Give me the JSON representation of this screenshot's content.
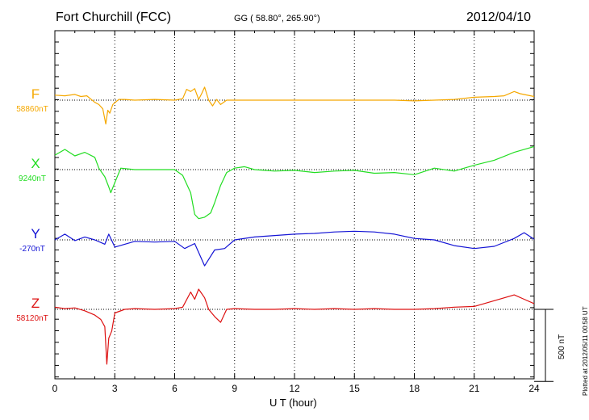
{
  "header": {
    "station": "Fort Churchill (FCC)",
    "coordinates": "GG ( 58.80°, 265.90°)",
    "date": "2012/04/10"
  },
  "footer": {
    "plotted_note": "Plotted at 2012/05/11 00:58 UT"
  },
  "scale": {
    "label": "500 nT",
    "value_nT": 500
  },
  "chart_data": {
    "type": "line",
    "title": "Fort Churchill (FCC)",
    "xlabel": "U T (hour)",
    "xlim": [
      0,
      24
    ],
    "xticks": [
      0,
      3,
      6,
      9,
      12,
      15,
      18,
      21,
      24
    ],
    "grid": "vertical dotted lines every 3 hours; dotted baseline per component",
    "series": [
      {
        "name": "F",
        "baseline_label": "58860nT",
        "color": "#f5a800",
        "x": [
          0,
          0.5,
          1.0,
          1.3,
          1.6,
          2.0,
          2.2,
          2.4,
          2.55,
          2.65,
          2.75,
          2.9,
          3.2,
          3.5,
          4.0,
          5.0,
          6.0,
          6.4,
          6.6,
          6.8,
          7.0,
          7.2,
          7.35,
          7.5,
          7.7,
          7.9,
          8.1,
          8.3,
          8.6,
          9.0,
          10,
          11,
          12,
          13,
          14,
          15,
          16,
          17,
          18,
          19,
          20,
          21,
          22,
          22.5,
          23,
          23.3,
          24
        ],
        "values": [
          35,
          30,
          40,
          25,
          30,
          -15,
          -30,
          -60,
          -165,
          -70,
          -90,
          -30,
          5,
          5,
          0,
          5,
          0,
          10,
          75,
          60,
          80,
          5,
          45,
          90,
          0,
          -40,
          5,
          -30,
          0,
          0,
          0,
          0,
          0,
          0,
          0,
          0,
          0,
          0,
          -5,
          0,
          5,
          20,
          25,
          30,
          60,
          45,
          25
        ]
      },
      {
        "name": "X",
        "baseline_label": "9240nT",
        "color": "#22dd22",
        "x": [
          0,
          0.5,
          1.0,
          1.5,
          2.0,
          2.2,
          2.5,
          2.7,
          2.8,
          3.0,
          3.3,
          4.0,
          5.0,
          6.0,
          6.4,
          6.8,
          7.0,
          7.2,
          7.5,
          7.8,
          8.0,
          8.3,
          8.6,
          9.0,
          9.5,
          10,
          11,
          12,
          13,
          14,
          15,
          16,
          17,
          18,
          19,
          20,
          21,
          22,
          23,
          24
        ],
        "values": [
          100,
          140,
          95,
          120,
          85,
          10,
          -50,
          -120,
          -160,
          -90,
          10,
          0,
          0,
          0,
          -40,
          -160,
          -310,
          -340,
          -330,
          -300,
          -230,
          -110,
          -20,
          10,
          20,
          0,
          -10,
          -5,
          -20,
          -10,
          -5,
          -25,
          -20,
          -35,
          10,
          -10,
          30,
          65,
          120,
          160
        ]
      },
      {
        "name": "Y",
        "baseline_label": "-270nT",
        "color": "#1515d5",
        "x": [
          0,
          0.5,
          1.0,
          1.5,
          2.0,
          2.5,
          2.7,
          3.0,
          3.5,
          4.0,
          5.0,
          6.0,
          6.5,
          7.0,
          7.5,
          8.0,
          8.5,
          9.0,
          10,
          11,
          12,
          13,
          14,
          15,
          16,
          17,
          18,
          19,
          20,
          21,
          22,
          23,
          23.5,
          24
        ],
        "values": [
          0,
          40,
          -5,
          20,
          0,
          -30,
          40,
          -50,
          -30,
          -10,
          -15,
          -10,
          -60,
          -25,
          -180,
          -70,
          -60,
          0,
          20,
          30,
          40,
          45,
          55,
          60,
          55,
          40,
          10,
          0,
          -40,
          -60,
          -45,
          10,
          50,
          5
        ]
      },
      {
        "name": "Z",
        "baseline_label": "58120nT",
        "color": "#dd1111",
        "x": [
          0,
          0.5,
          1.0,
          1.5,
          2.0,
          2.3,
          2.5,
          2.6,
          2.7,
          2.85,
          3.0,
          3.5,
          4.0,
          5.0,
          6.0,
          6.4,
          6.8,
          7.0,
          7.2,
          7.5,
          7.7,
          8.0,
          8.3,
          8.6,
          9.0,
          10,
          11,
          12,
          13,
          14,
          15,
          16,
          17,
          18,
          19,
          20,
          21,
          22,
          23,
          23.5,
          24
        ],
        "values": [
          15,
          5,
          10,
          -10,
          -40,
          -70,
          -120,
          -380,
          -200,
          -150,
          -25,
          0,
          5,
          0,
          5,
          15,
          120,
          70,
          140,
          80,
          0,
          -50,
          -90,
          0,
          5,
          0,
          0,
          5,
          0,
          5,
          0,
          5,
          0,
          0,
          5,
          15,
          20,
          60,
          100,
          70,
          40
        ]
      }
    ]
  }
}
